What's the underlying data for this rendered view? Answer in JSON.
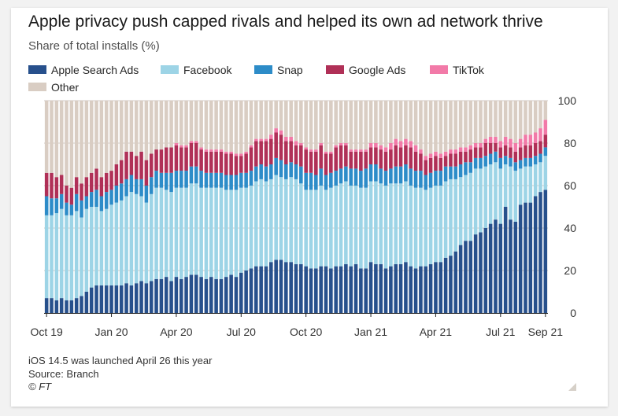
{
  "title": "Apple privacy push capped rivals and helped its own ad network thrive",
  "subtitle": "Share of total installs (%)",
  "footer": {
    "note": "iOS 14.5 was launched April 26 this year",
    "source": "Source: Branch",
    "copyright": "© FT"
  },
  "colors": {
    "Apple Search Ads": "#27508c",
    "Facebook": "#9dd4e6",
    "Snap": "#2d8cc8",
    "Google Ads": "#b03057",
    "TikTok": "#f27aa8",
    "Other": "#d9cdc3",
    "gridline": "#d0cac4",
    "baseline": "#262626"
  },
  "chart_data": {
    "type": "bar",
    "stacked": true,
    "title": "Apple privacy push capped rivals and helped its own ad network thrive",
    "subtitle": "Share of total installs (%)",
    "ylim": [
      0,
      100
    ],
    "yticks": [
      0,
      20,
      40,
      60,
      80,
      100
    ],
    "y_axis_side": "right",
    "legend_position": "top",
    "xtick_labels": [
      "Oct 19",
      "Jan 20",
      "Apr 20",
      "Jul 20",
      "Oct 20",
      "Jan 21",
      "Apr 21",
      "Jul 21",
      "Sep 21"
    ],
    "xtick_positions": [
      0,
      13,
      26,
      39,
      52,
      65,
      78,
      91,
      100
    ],
    "series": [
      {
        "name": "Apple Search Ads",
        "values": [
          7,
          7,
          6,
          7,
          6,
          6,
          7,
          8,
          10,
          12,
          13,
          13,
          13,
          13,
          13,
          13,
          14,
          13,
          14,
          15,
          14,
          15,
          16,
          16,
          17,
          15,
          17,
          16,
          17,
          18,
          18,
          17,
          16,
          17,
          16,
          16,
          17,
          18,
          17,
          19,
          20,
          21,
          22,
          22,
          22,
          24,
          25,
          25,
          24,
          24,
          23,
          23,
          22,
          21,
          21,
          22,
          22,
          21,
          22,
          22,
          23,
          22,
          23,
          21,
          21,
          24,
          23,
          23,
          21,
          22,
          23,
          23,
          24,
          22,
          21,
          22,
          22,
          23,
          24,
          24,
          26,
          27,
          29,
          32,
          34,
          34,
          37,
          38,
          40,
          42,
          44,
          42,
          50,
          44,
          43,
          51,
          52,
          52,
          55,
          57,
          58
        ]
      },
      {
        "name": "Facebook",
        "values": [
          39,
          39,
          41,
          42,
          40,
          40,
          41,
          37,
          39,
          38,
          37,
          35,
          36,
          38,
          39,
          40,
          41,
          44,
          42,
          40,
          38,
          41,
          43,
          43,
          41,
          42,
          42,
          43,
          42,
          43,
          43,
          42,
          43,
          42,
          43,
          43,
          41,
          40,
          41,
          40,
          39,
          39,
          40,
          41,
          40,
          39,
          40,
          39,
          39,
          40,
          40,
          38,
          36,
          37,
          37,
          38,
          36,
          38,
          38,
          39,
          39,
          38,
          37,
          38,
          38,
          38,
          39,
          38,
          39,
          39,
          38,
          38,
          38,
          38,
          38,
          37,
          36,
          36,
          36,
          36,
          36,
          36,
          34,
          32,
          31,
          32,
          31,
          30,
          29,
          28,
          27,
          26,
          20,
          25,
          24,
          17,
          17,
          17,
          15,
          14,
          16
        ]
      },
      {
        "name": "Snap",
        "values": [
          9,
          8,
          7,
          7,
          6,
          5,
          8,
          8,
          6,
          7,
          8,
          7,
          8,
          7,
          8,
          8,
          8,
          8,
          7,
          8,
          8,
          8,
          8,
          7,
          8,
          9,
          8,
          8,
          8,
          8,
          8,
          8,
          7,
          7,
          7,
          7,
          7,
          7,
          7,
          7,
          7,
          7,
          7,
          7,
          7,
          7,
          8,
          8,
          7,
          7,
          7,
          8,
          8,
          8,
          7,
          8,
          7,
          7,
          7,
          7,
          7,
          8,
          8,
          8,
          9,
          8,
          8,
          7,
          7,
          7,
          8,
          8,
          8,
          8,
          8,
          8,
          7,
          7,
          7,
          7,
          7,
          6,
          6,
          6,
          6,
          5,
          5,
          5,
          5,
          5,
          5,
          5,
          4,
          4,
          4,
          4,
          4,
          4,
          4,
          4,
          4
        ]
      },
      {
        "name": "Google Ads",
        "values": [
          11,
          12,
          10,
          9,
          8,
          8,
          8,
          8,
          9,
          9,
          10,
          9,
          9,
          9,
          10,
          11,
          13,
          11,
          11,
          13,
          12,
          11,
          10,
          11,
          12,
          12,
          12,
          11,
          11,
          11,
          11,
          10,
          10,
          10,
          10,
          10,
          10,
          10,
          9,
          8,
          9,
          11,
          12,
          11,
          12,
          12,
          12,
          12,
          11,
          10,
          9,
          10,
          11,
          10,
          11,
          11,
          10,
          9,
          11,
          11,
          10,
          8,
          8,
          9,
          8,
          8,
          8,
          9,
          9,
          9,
          10,
          9,
          9,
          10,
          9,
          8,
          7,
          7,
          7,
          6,
          5,
          6,
          6,
          6,
          5,
          6,
          5,
          5,
          6,
          5,
          4,
          5,
          5,
          5,
          5,
          6,
          6,
          6,
          6,
          6,
          6
        ]
      },
      {
        "name": "TikTok",
        "values": [
          0,
          0,
          0,
          0,
          0,
          0,
          0,
          0,
          0,
          0,
          0,
          0,
          0,
          0,
          0,
          0,
          0,
          0,
          0,
          0,
          0,
          0,
          0,
          0,
          0,
          0,
          1,
          1,
          1,
          1,
          1,
          1,
          1,
          1,
          1,
          1,
          1,
          1,
          1,
          1,
          1,
          1,
          1,
          1,
          1,
          2,
          2,
          2,
          2,
          2,
          2,
          1,
          1,
          1,
          1,
          1,
          1,
          1,
          1,
          1,
          1,
          1,
          1,
          1,
          1,
          2,
          2,
          2,
          2,
          3,
          3,
          3,
          3,
          3,
          3,
          2,
          2,
          2,
          2,
          2,
          2,
          2,
          2,
          2,
          2,
          2,
          2,
          2,
          2,
          3,
          3,
          3,
          4,
          4,
          4,
          4,
          5,
          5,
          5,
          6,
          7
        ]
      },
      {
        "name": "Other",
        "values": [
          34,
          34,
          36,
          35,
          40,
          41,
          36,
          39,
          36,
          34,
          32,
          36,
          34,
          33,
          30,
          28,
          24,
          24,
          26,
          24,
          28,
          25,
          23,
          23,
          22,
          22,
          20,
          21,
          21,
          19,
          19,
          22,
          23,
          23,
          23,
          23,
          24,
          24,
          25,
          25,
          24,
          21,
          18,
          18,
          18,
          16,
          13,
          14,
          17,
          17,
          19,
          20,
          22,
          23,
          23,
          20,
          24,
          24,
          21,
          20,
          20,
          23,
          23,
          23,
          23,
          20,
          20,
          21,
          22,
          20,
          18,
          19,
          18,
          19,
          21,
          23,
          26,
          25,
          24,
          25,
          24,
          23,
          23,
          22,
          22,
          21,
          20,
          20,
          18,
          17,
          17,
          19,
          17,
          18,
          20,
          18,
          16,
          16,
          15,
          13,
          9
        ]
      }
    ]
  }
}
